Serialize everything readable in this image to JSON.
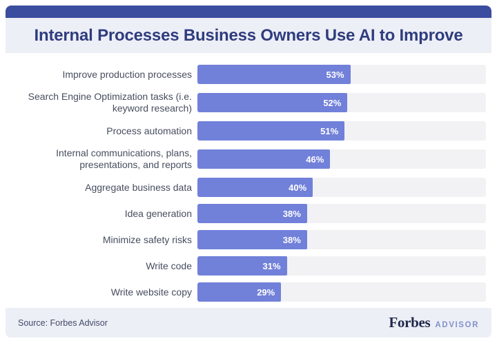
{
  "header": {
    "title": "Internal Processes Business Owners Use AI to Improve",
    "accent_color": "#3B4D9F",
    "band_color": "#EDEFF6",
    "title_color": "#2F3C7E"
  },
  "chart_data": {
    "type": "bar",
    "orientation": "horizontal",
    "title": "Internal Processes Business Owners Use AI to Improve",
    "categories": [
      "Improve production processes",
      "Search Engine Optimization tasks (i.e. keyword research)",
      "Process automation",
      "Internal communications, plans, presentations, and reports",
      "Aggregate business data",
      "Idea generation",
      "Minimize safety risks",
      "Write code",
      "Write website copy"
    ],
    "values": [
      53,
      52,
      51,
      46,
      40,
      38,
      38,
      31,
      29
    ],
    "value_suffix": "%",
    "xlabel": "",
    "ylabel": "",
    "xlim": [
      0,
      100
    ],
    "grid": false,
    "legend": false,
    "bar_color": "#7180D9",
    "track_color": "#F2F2F4",
    "value_label_color": "#FFFFFF",
    "category_label_color": "#474D5F"
  },
  "footer": {
    "source": "Source: Forbes Advisor",
    "logo_primary": "Forbes",
    "logo_secondary": "ADVISOR"
  }
}
